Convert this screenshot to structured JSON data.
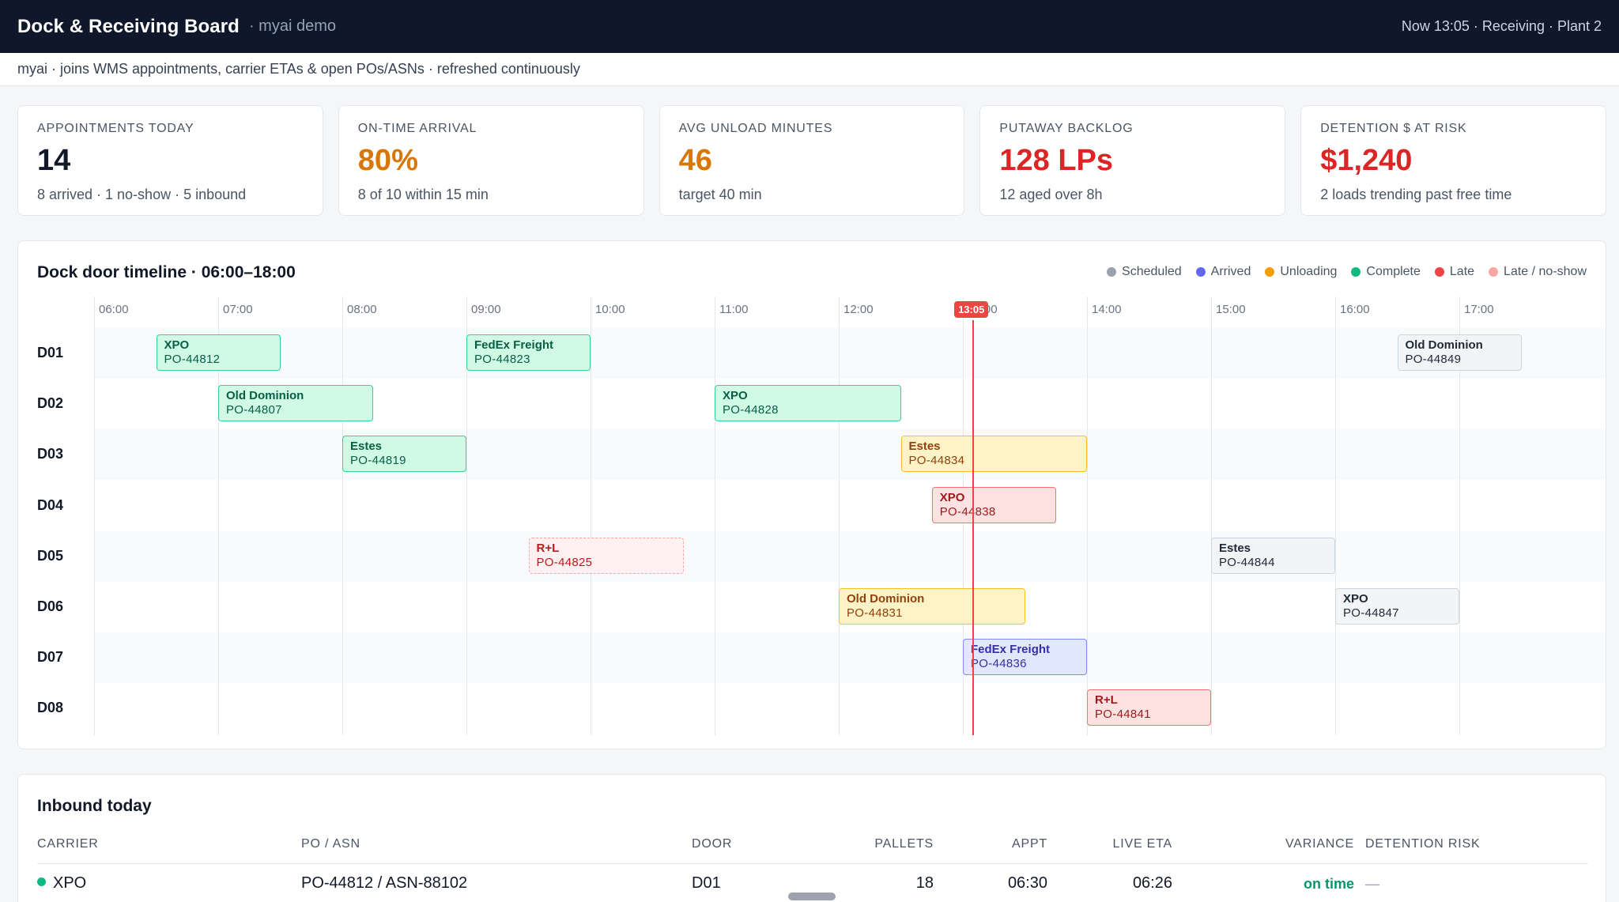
{
  "header": {
    "title": "Dock & Receiving Board",
    "subtitle": "· myai demo",
    "status": "Now 13:05 · Receiving · Plant 2"
  },
  "subheader": "myai · joins WMS appointments, carrier ETAs & open POs/ASNs · refreshed continuously",
  "kpis": [
    {
      "label": "APPOINTMENTS TODAY",
      "value": "14",
      "sub": "8 arrived · 1 no-show · 5 inbound",
      "color": "#111827"
    },
    {
      "label": "ON-TIME ARRIVAL",
      "value": "80%",
      "sub": "8 of 10 within 15 min",
      "color": "#d97706"
    },
    {
      "label": "AVG UNLOAD MINUTES",
      "value": "46",
      "sub": "target 40 min",
      "color": "#d97706"
    },
    {
      "label": "PUTAWAY BACKLOG",
      "value": "128 LPs",
      "sub": "12 aged over 8h",
      "color": "#dc2626"
    },
    {
      "label": "DETENTION $ AT RISK",
      "value": "$1,240",
      "sub": "2 loads trending past free time",
      "color": "#dc2626"
    }
  ],
  "timeline": {
    "title": "Dock door timeline · 06:00–18:00",
    "start_hour": 6,
    "end_hour": 18,
    "hours": [
      "06:00",
      "07:00",
      "08:00",
      "09:00",
      "10:00",
      "11:00",
      "12:00",
      "13:00",
      "14:00",
      "15:00",
      "16:00",
      "17:00"
    ],
    "now_label": "13:05",
    "now_hour": 13.0833,
    "legend": [
      {
        "label": "Scheduled",
        "color": "#9ca3af"
      },
      {
        "label": "Arrived",
        "color": "#6366f1"
      },
      {
        "label": "Unloading",
        "color": "#f59e0b"
      },
      {
        "label": "Complete",
        "color": "#10b981"
      },
      {
        "label": "Late",
        "color": "#ef4444"
      },
      {
        "label": "Late / no-show",
        "color": "#fca5a5"
      }
    ],
    "doors": [
      "D01",
      "D02",
      "D03",
      "D04",
      "D05",
      "D06",
      "D07",
      "D08"
    ],
    "appointments": [
      {
        "door": 0,
        "carrier": "XPO",
        "po": "PO-44812",
        "start": 6.5,
        "end": 7.5,
        "status": "complete"
      },
      {
        "door": 0,
        "carrier": "FedEx Freight",
        "po": "PO-44823",
        "start": 9.0,
        "end": 10.0,
        "status": "complete"
      },
      {
        "door": 0,
        "carrier": "Old Dominion",
        "po": "PO-44849",
        "start": 16.5,
        "end": 17.5,
        "status": "scheduled"
      },
      {
        "door": 1,
        "carrier": "Old Dominion",
        "po": "PO-44807",
        "start": 7.0,
        "end": 8.25,
        "status": "complete"
      },
      {
        "door": 1,
        "carrier": "XPO",
        "po": "PO-44828",
        "start": 11.0,
        "end": 12.5,
        "status": "complete"
      },
      {
        "door": 2,
        "carrier": "Estes",
        "po": "PO-44819",
        "start": 8.0,
        "end": 9.0,
        "status": "complete"
      },
      {
        "door": 2,
        "carrier": "Estes",
        "po": "PO-44834",
        "start": 12.5,
        "end": 14.0,
        "status": "unloading"
      },
      {
        "door": 3,
        "carrier": "XPO",
        "po": "PO-44838",
        "start": 12.75,
        "end": 13.75,
        "status": "late"
      },
      {
        "door": 4,
        "carrier": "R+L",
        "po": "PO-44825",
        "start": 9.5,
        "end": 10.75,
        "status": "noshow"
      },
      {
        "door": 4,
        "carrier": "Estes",
        "po": "PO-44844",
        "start": 15.0,
        "end": 16.0,
        "status": "scheduled"
      },
      {
        "door": 5,
        "carrier": "Old Dominion",
        "po": "PO-44831",
        "start": 12.0,
        "end": 13.5,
        "status": "unloading"
      },
      {
        "door": 5,
        "carrier": "XPO",
        "po": "PO-44847",
        "start": 16.0,
        "end": 17.0,
        "status": "scheduled"
      },
      {
        "door": 6,
        "carrier": "FedEx Freight",
        "po": "PO-44836",
        "start": 13.0,
        "end": 14.0,
        "status": "arrived"
      },
      {
        "door": 7,
        "carrier": "R+L",
        "po": "PO-44841",
        "start": 14.0,
        "end": 15.0,
        "status": "late"
      }
    ]
  },
  "inbound": {
    "title": "Inbound today",
    "columns": [
      "CARRIER",
      "PO / ASN",
      "DOOR",
      "PALLETS",
      "APPT",
      "LIVE ETA",
      "VARIANCE",
      "DETENTION RISK"
    ],
    "rows": [
      {
        "carrier": "XPO",
        "po_asn": "PO-44812 / ASN-88102",
        "door": "D01",
        "pallets": "18",
        "appt": "06:30",
        "eta": "06:26",
        "variance": "on time",
        "risk": "—",
        "dot_color": "#10b981"
      }
    ]
  }
}
